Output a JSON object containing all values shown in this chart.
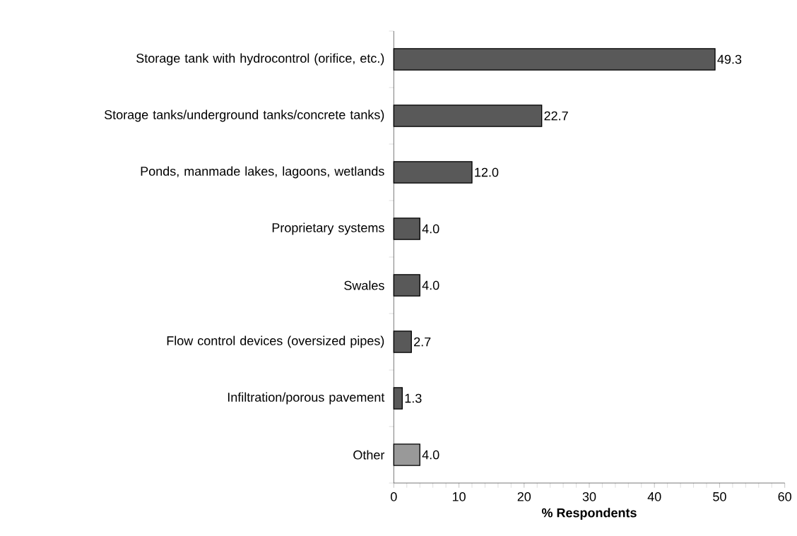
{
  "chart_data": {
    "type": "bar",
    "orientation": "horizontal",
    "xlabel": "% Respondents",
    "categories": [
      "Storage tank with hydrocontrol (orifice, etc.)",
      "Storage tanks/underground tanks/concrete tanks)",
      "Ponds, manmade lakes, lagoons, wetlands",
      "Proprietary systems",
      "Swales",
      "Flow control devices (oversized pipes)",
      "Infiltration/porous pavement",
      "Other"
    ],
    "values": [
      49.3,
      22.7,
      12.0,
      4.0,
      4.0,
      2.7,
      1.3,
      4.0
    ],
    "value_labels": [
      "49.3",
      "22.7",
      "12.0",
      "4.0",
      "4.0",
      "2.7",
      "1.3",
      "4.0"
    ],
    "colors": [
      "#595959",
      "#595959",
      "#595959",
      "#595959",
      "#595959",
      "#595959",
      "#595959",
      "#999999"
    ],
    "xlim": [
      0,
      60
    ],
    "xticks": [
      0,
      10,
      20,
      30,
      40,
      50,
      60
    ]
  }
}
